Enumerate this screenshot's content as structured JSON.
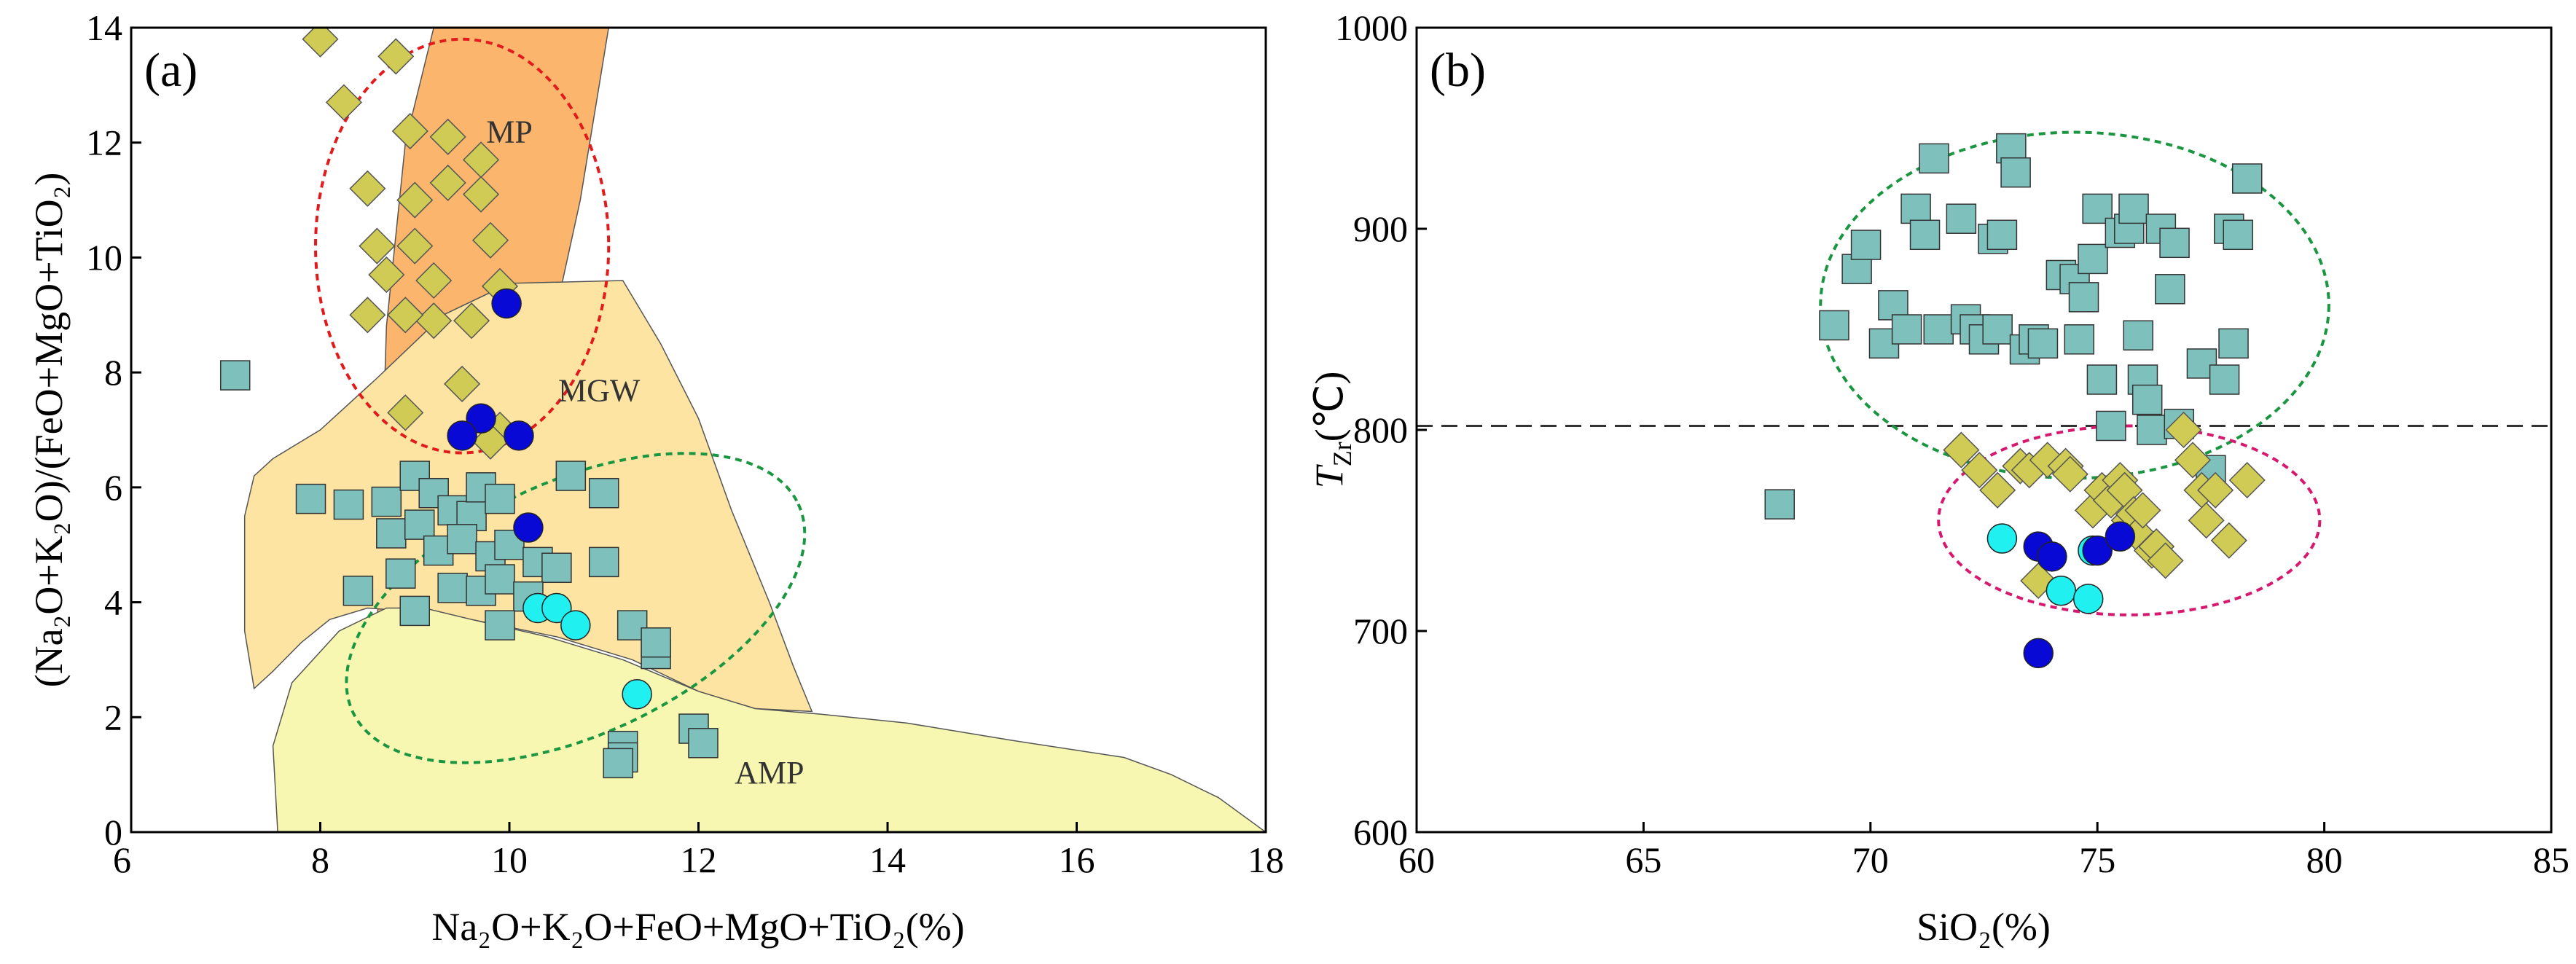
{
  "chart_data": [
    {
      "type": "scatter",
      "panel_label": "(a)",
      "xlabel": "Na₂O+K₂O+FeO+MgO+TiO₂(%)",
      "ylabel": "(Na₂O+K₂O)/(FeO+MgO+TiO₂)",
      "xlim": [
        6,
        18
      ],
      "ylim": [
        0,
        14
      ],
      "x_ticks": [
        "6",
        "8",
        "10",
        "12",
        "14",
        "16",
        "18"
      ],
      "y_ticks": [
        "0",
        "2",
        "4",
        "6",
        "8",
        "10",
        "12",
        "14"
      ],
      "x_tick_values": [
        6,
        8,
        10,
        12,
        14,
        16,
        18
      ],
      "y_tick_values": [
        0,
        2,
        4,
        6,
        8,
        10,
        12,
        14
      ],
      "grid": false,
      "fields": [
        {
          "label": "MP",
          "label_at": [
            10.0,
            12.0
          ],
          "color": "#FBB56D",
          "polygon": [
            [
              8.55,
              0.75
            ],
            [
              8.7,
              8.8
            ],
            [
              8.9,
              12.0
            ],
            [
              9.2,
              14.0
            ],
            [
              11.05,
              14.0
            ],
            [
              10.95,
              13.0
            ],
            [
              10.75,
              11.0
            ],
            [
              10.55,
              9.5
            ],
            [
              10.1,
              9.2
            ],
            [
              9.5,
              8.2
            ],
            [
              8.9,
              6.3
            ],
            [
              8.55,
              0.75
            ]
          ]
        },
        {
          "label": "MGW",
          "label_at": [
            10.95,
            7.5
          ],
          "color": "#FDE4A2",
          "polygon": [
            [
              7.2,
              5.5
            ],
            [
              7.3,
              6.2
            ],
            [
              7.5,
              6.5
            ],
            [
              8.0,
              7.0
            ],
            [
              8.6,
              7.9
            ],
            [
              9.3,
              9.0
            ],
            [
              10.0,
              9.55
            ],
            [
              11.2,
              9.6
            ],
            [
              11.6,
              8.5
            ],
            [
              12.0,
              7.2
            ],
            [
              12.35,
              5.6
            ],
            [
              12.75,
              4.0
            ],
            [
              13.0,
              2.9
            ],
            [
              13.2,
              2.1
            ],
            [
              12.6,
              2.15
            ],
            [
              12.0,
              2.45
            ],
            [
              11.3,
              3.0
            ],
            [
              10.5,
              3.4
            ],
            [
              9.6,
              3.7
            ],
            [
              8.9,
              3.85
            ],
            [
              8.5,
              3.9
            ],
            [
              8.1,
              3.7
            ],
            [
              7.8,
              3.3
            ],
            [
              7.5,
              2.8
            ],
            [
              7.3,
              2.5
            ],
            [
              7.2,
              3.5
            ],
            [
              7.2,
              5.5
            ]
          ]
        },
        {
          "label": "AMP",
          "label_at": [
            12.75,
            0.85
          ],
          "color": "#F7F7B2",
          "polygon": [
            [
              7.55,
              0.0
            ],
            [
              7.5,
              1.5
            ],
            [
              7.7,
              2.6
            ],
            [
              8.2,
              3.5
            ],
            [
              8.7,
              3.9
            ],
            [
              9.1,
              3.9
            ],
            [
              9.6,
              3.7
            ],
            [
              10.4,
              3.4
            ],
            [
              11.2,
              3.0
            ],
            [
              12.0,
              2.45
            ],
            [
              12.6,
              2.15
            ],
            [
              13.3,
              2.05
            ],
            [
              14.2,
              1.9
            ],
            [
              15.3,
              1.6
            ],
            [
              16.5,
              1.3
            ],
            [
              17.0,
              1.0
            ],
            [
              17.5,
              0.6
            ],
            [
              18.0,
              0.0
            ]
          ]
        }
      ],
      "ellipses": [
        {
          "color": "#E31A1C",
          "center": [
            9.5,
            10.2
          ],
          "radii": [
            1.55,
            3.6
          ],
          "rotation_deg": 0
        },
        {
          "color": "#1A9641",
          "center": [
            10.7,
            3.9
          ],
          "radii": [
            2.6,
            2.2
          ],
          "rotation_deg": -25
        }
      ],
      "series": [
        {
          "marker": "diamond",
          "color": "#CFCB54",
          "points": [
            [
              8.0,
              13.8
            ],
            [
              8.25,
              12.7
            ],
            [
              8.8,
              13.5
            ],
            [
              8.95,
              12.2
            ],
            [
              9.35,
              12.1
            ],
            [
              8.5,
              11.2
            ],
            [
              9.0,
              11.0
            ],
            [
              9.35,
              11.3
            ],
            [
              9.7,
              11.7
            ],
            [
              9.7,
              11.1
            ],
            [
              8.6,
              10.2
            ],
            [
              9.0,
              10.2
            ],
            [
              8.7,
              9.7
            ],
            [
              8.5,
              9.0
            ],
            [
              9.2,
              8.9
            ],
            [
              9.2,
              9.6
            ],
            [
              9.8,
              10.3
            ],
            [
              9.9,
              9.5
            ],
            [
              8.9,
              9.0
            ],
            [
              9.6,
              8.9
            ],
            [
              9.5,
              7.8
            ],
            [
              8.9,
              7.3
            ],
            [
              9.9,
              7.0
            ],
            [
              9.8,
              6.8
            ]
          ]
        },
        {
          "marker": "square",
          "color": "#7EC1BC",
          "points": [
            [
              7.1,
              7.95
            ],
            [
              7.9,
              5.8
            ],
            [
              8.3,
              5.7
            ],
            [
              8.7,
              5.75
            ],
            [
              9.0,
              6.2
            ],
            [
              9.2,
              5.9
            ],
            [
              9.4,
              5.6
            ],
            [
              9.6,
              5.5
            ],
            [
              9.7,
              6.0
            ],
            [
              9.9,
              5.8
            ],
            [
              8.75,
              5.2
            ],
            [
              9.05,
              5.35
            ],
            [
              9.25,
              4.9
            ],
            [
              9.5,
              5.1
            ],
            [
              9.8,
              4.8
            ],
            [
              10.0,
              5.0
            ],
            [
              10.3,
              4.7
            ],
            [
              10.5,
              4.6
            ],
            [
              10.65,
              6.2
            ],
            [
              11.0,
              5.9
            ],
            [
              11.0,
              4.7
            ],
            [
              9.4,
              4.25
            ],
            [
              9.7,
              4.2
            ],
            [
              9.9,
              4.4
            ],
            [
              10.2,
              4.1
            ],
            [
              9.0,
              3.85
            ],
            [
              8.4,
              4.2
            ],
            [
              8.85,
              4.5
            ],
            [
              9.9,
              3.6
            ],
            [
              11.3,
              3.6
            ],
            [
              11.55,
              3.1
            ],
            [
              11.55,
              3.3
            ],
            [
              11.2,
              1.5
            ],
            [
              11.2,
              1.3
            ],
            [
              11.95,
              1.8
            ],
            [
              12.05,
              1.55
            ],
            [
              11.15,
              1.2
            ]
          ]
        },
        {
          "marker": "circle",
          "color": "#0909D6",
          "points": [
            [
              9.97,
              9.2
            ],
            [
              9.7,
              7.2
            ],
            [
              9.5,
              6.9
            ],
            [
              10.1,
              6.9
            ],
            [
              10.2,
              5.3
            ]
          ]
        },
        {
          "marker": "circle",
          "color": "#21F0F0",
          "points": [
            [
              10.3,
              3.9
            ],
            [
              10.5,
              3.9
            ],
            [
              10.7,
              3.6
            ],
            [
              11.35,
              2.4
            ]
          ]
        }
      ],
      "annotations": [
        "MP",
        "MGW",
        "AMP"
      ]
    },
    {
      "type": "scatter",
      "panel_label": "(b)",
      "xlabel": "SiO₂(%)",
      "ylabel": "TZr(℃)",
      "ylabel_main": "T",
      "ylabel_sub": "Zr",
      "ylabel_unit": "(℃)",
      "xlim": [
        60,
        85
      ],
      "ylim": [
        600,
        1000
      ],
      "x_ticks": [
        "60",
        "65",
        "70",
        "75",
        "80",
        "85"
      ],
      "y_ticks": [
        "600",
        "700",
        "800",
        "900",
        "1000"
      ],
      "x_tick_values": [
        60,
        65,
        70,
        75,
        80,
        85
      ],
      "y_tick_values": [
        600,
        700,
        800,
        900,
        1000
      ],
      "grid": false,
      "reference_line": {
        "y": 802,
        "style": "dashed"
      },
      "ellipses": [
        {
          "color": "#1A9641",
          "center": [
            74.5,
            862
          ],
          "radii": [
            5.6,
            86
          ],
          "rotation_deg": 0
        },
        {
          "color": "#D6196E",
          "center": [
            75.7,
            755
          ],
          "radii": [
            4.2,
            47
          ],
          "rotation_deg": 0
        }
      ],
      "series": [
        {
          "marker": "square",
          "color": "#7EC1BC",
          "points": [
            [
              68.0,
              763
            ],
            [
              69.2,
              852
            ],
            [
              69.7,
              880
            ],
            [
              69.9,
              892
            ],
            [
              70.3,
              843
            ],
            [
              70.5,
              862
            ],
            [
              70.8,
              850
            ],
            [
              71.0,
              910
            ],
            [
              71.2,
              897
            ],
            [
              71.4,
              935
            ],
            [
              71.5,
              850
            ],
            [
              72.0,
              905
            ],
            [
              72.1,
              855
            ],
            [
              72.3,
              850
            ],
            [
              72.5,
              845
            ],
            [
              72.7,
              895
            ],
            [
              72.8,
              850
            ],
            [
              72.9,
              897
            ],
            [
              73.1,
              940
            ],
            [
              73.2,
              928
            ],
            [
              73.4,
              840
            ],
            [
              73.6,
              845
            ],
            [
              73.8,
              843
            ],
            [
              74.2,
              877
            ],
            [
              74.5,
              875
            ],
            [
              74.6,
              845
            ],
            [
              74.7,
              866
            ],
            [
              74.9,
              885
            ],
            [
              75.0,
              910
            ],
            [
              75.1,
              825
            ],
            [
              75.3,
              802
            ],
            [
              75.5,
              898
            ],
            [
              75.7,
              900
            ],
            [
              75.8,
              910
            ],
            [
              75.9,
              847
            ],
            [
              76.0,
              825
            ],
            [
              76.1,
              815
            ],
            [
              76.2,
              800
            ],
            [
              76.4,
              900
            ],
            [
              76.6,
              870
            ],
            [
              76.7,
              893
            ],
            [
              76.8,
              803
            ],
            [
              77.3,
              833
            ],
            [
              77.5,
              780
            ],
            [
              77.8,
              825
            ],
            [
              77.9,
              900
            ],
            [
              78.0,
              843
            ],
            [
              78.1,
              897
            ],
            [
              78.3,
              925
            ]
          ]
        },
        {
          "marker": "diamond",
          "color": "#CFCB54",
          "points": [
            [
              72.0,
              790
            ],
            [
              72.4,
              780
            ],
            [
              72.8,
              770
            ],
            [
              73.3,
              782
            ],
            [
              73.5,
              780
            ],
            [
              73.9,
              785
            ],
            [
              74.3,
              782
            ],
            [
              74.4,
              778
            ],
            [
              74.9,
              760
            ],
            [
              75.1,
              770
            ],
            [
              75.3,
              765
            ],
            [
              75.5,
              775
            ],
            [
              75.6,
              770
            ],
            [
              75.7,
              755
            ],
            [
              75.8,
              758
            ],
            [
              75.9,
              748
            ],
            [
              76.0,
              760
            ],
            [
              76.2,
              740
            ],
            [
              76.3,
              742
            ],
            [
              76.5,
              735
            ],
            [
              76.9,
              800
            ],
            [
              77.1,
              785
            ],
            [
              77.3,
              770
            ],
            [
              77.4,
              755
            ],
            [
              77.6,
              770
            ],
            [
              77.9,
              745
            ],
            [
              78.3,
              775
            ],
            [
              73.7,
              725
            ]
          ]
        },
        {
          "marker": "circle",
          "color": "#21F0F0",
          "points": [
            [
              72.9,
              746
            ],
            [
              74.2,
              720
            ],
            [
              74.8,
              716
            ],
            [
              74.9,
              740
            ]
          ]
        },
        {
          "marker": "circle",
          "color": "#0909D6",
          "points": [
            [
              73.7,
              742
            ],
            [
              74.0,
              737
            ],
            [
              75.0,
              740
            ],
            [
              75.5,
              747
            ],
            [
              73.7,
              689
            ]
          ]
        }
      ]
    }
  ]
}
